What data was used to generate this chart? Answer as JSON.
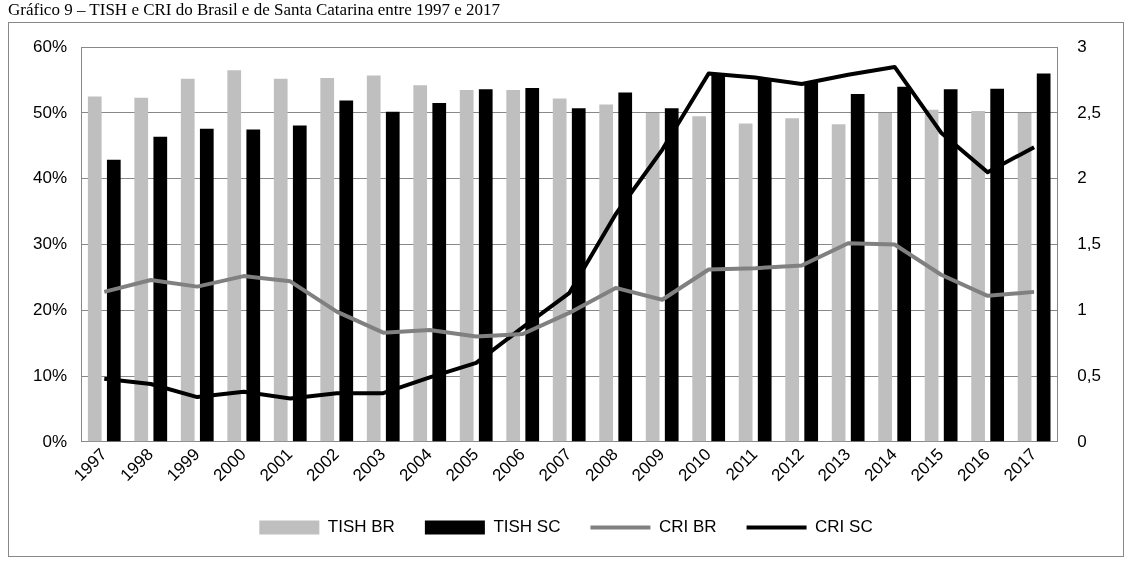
{
  "chart_data": {
    "type": "bar",
    "title": "Gráfico 9 – TISH e CRI do Brasil e de Santa Catarina entre 1997 e 2017",
    "categories": [
      "1997",
      "1998",
      "1999",
      "2000",
      "2001",
      "2002",
      "2003",
      "2004",
      "2005",
      "2006",
      "2007",
      "2008",
      "2009",
      "2010",
      "2011",
      "2012",
      "2013",
      "2014",
      "2015",
      "2016",
      "2017"
    ],
    "series": [
      {
        "name": "TISH BR",
        "color": "#bfbfbf",
        "values": [
          52.5,
          52.3,
          55.2,
          56.5,
          55.2,
          55.3,
          55.7,
          54.2,
          53.5,
          53.5,
          52.2,
          51.3,
          50.0,
          49.5,
          48.4,
          49.2,
          48.3,
          50.0,
          50.5,
          50.3,
          50.0
        ]
      },
      {
        "name": "TISH SC",
        "color": "#000000",
        "values": [
          42.9,
          46.4,
          47.6,
          47.5,
          48.1,
          51.9,
          50.2,
          51.5,
          53.6,
          53.8,
          50.7,
          53.1,
          50.7,
          56.0,
          55.0,
          54.7,
          52.9,
          54.0,
          53.6,
          53.7,
          56.0
        ]
      },
      {
        "name": "CRI BR",
        "type": "line",
        "axis": "y2",
        "color": "#808080",
        "values": [
          1.14,
          1.23,
          1.18,
          1.26,
          1.22,
          0.99,
          0.83,
          0.85,
          0.8,
          0.82,
          0.98,
          1.17,
          1.08,
          1.31,
          1.32,
          1.34,
          1.51,
          1.5,
          1.27,
          1.11,
          1.14
        ]
      },
      {
        "name": "CRI SC",
        "type": "line",
        "axis": "y2",
        "color": "#000000",
        "values": [
          0.48,
          0.44,
          0.34,
          0.38,
          0.33,
          0.37,
          0.37,
          0.49,
          0.6,
          0.87,
          1.13,
          1.73,
          2.22,
          2.8,
          2.77,
          2.72,
          2.79,
          2.85,
          2.35,
          2.05,
          2.24
        ]
      }
    ],
    "ylim": [
      0,
      60
    ],
    "yticks": [
      {
        "value": 0,
        "label": "0%"
      },
      {
        "value": 10,
        "label": "10%"
      },
      {
        "value": 20,
        "label": "20%"
      },
      {
        "value": 30,
        "label": "30%"
      },
      {
        "value": 40,
        "label": "40%"
      },
      {
        "value": 50,
        "label": "50%"
      },
      {
        "value": 60,
        "label": "60%"
      }
    ],
    "y2lim": [
      0,
      3
    ],
    "y2ticks": [
      0,
      {
        "value": 0.5,
        "label": "0,5"
      },
      1,
      {
        "value": 1.5,
        "label": "1,5"
      },
      2,
      {
        "value": 2.5,
        "label": "2,5"
      },
      3
    ],
    "grid": "y",
    "legend": "bottom",
    "marker": "none",
    "line_style": "solid"
  }
}
